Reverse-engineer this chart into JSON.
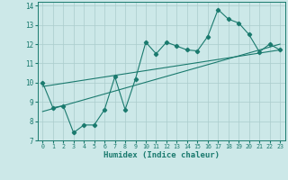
{
  "xlabel": "Humidex (Indice chaleur)",
  "background_color": "#cce8e8",
  "grid_color": "#aacccc",
  "line_color": "#1a7a6e",
  "xlim": [
    -0.5,
    23.5
  ],
  "ylim": [
    7,
    14.2
  ],
  "yticks": [
    7,
    8,
    9,
    10,
    11,
    12,
    13,
    14
  ],
  "xticks": [
    0,
    1,
    2,
    3,
    4,
    5,
    6,
    7,
    8,
    9,
    10,
    11,
    12,
    13,
    14,
    15,
    16,
    17,
    18,
    19,
    20,
    21,
    22,
    23
  ],
  "series1_x": [
    0,
    1,
    2,
    3,
    4,
    5,
    6,
    7,
    8,
    9,
    10,
    11,
    12,
    13,
    14,
    15,
    16,
    17,
    18,
    19,
    20,
    21,
    22,
    23
  ],
  "series1_y": [
    10.0,
    8.7,
    8.8,
    7.4,
    7.8,
    7.8,
    8.6,
    10.3,
    8.6,
    10.2,
    12.1,
    11.5,
    12.1,
    11.9,
    11.7,
    11.65,
    12.4,
    13.8,
    13.3,
    13.1,
    12.5,
    11.6,
    12.0,
    11.7
  ],
  "trend1_x": [
    0,
    23
  ],
  "trend1_y": [
    8.5,
    12.0
  ],
  "trend2_x": [
    0,
    23
  ],
  "trend2_y": [
    9.8,
    11.7
  ]
}
